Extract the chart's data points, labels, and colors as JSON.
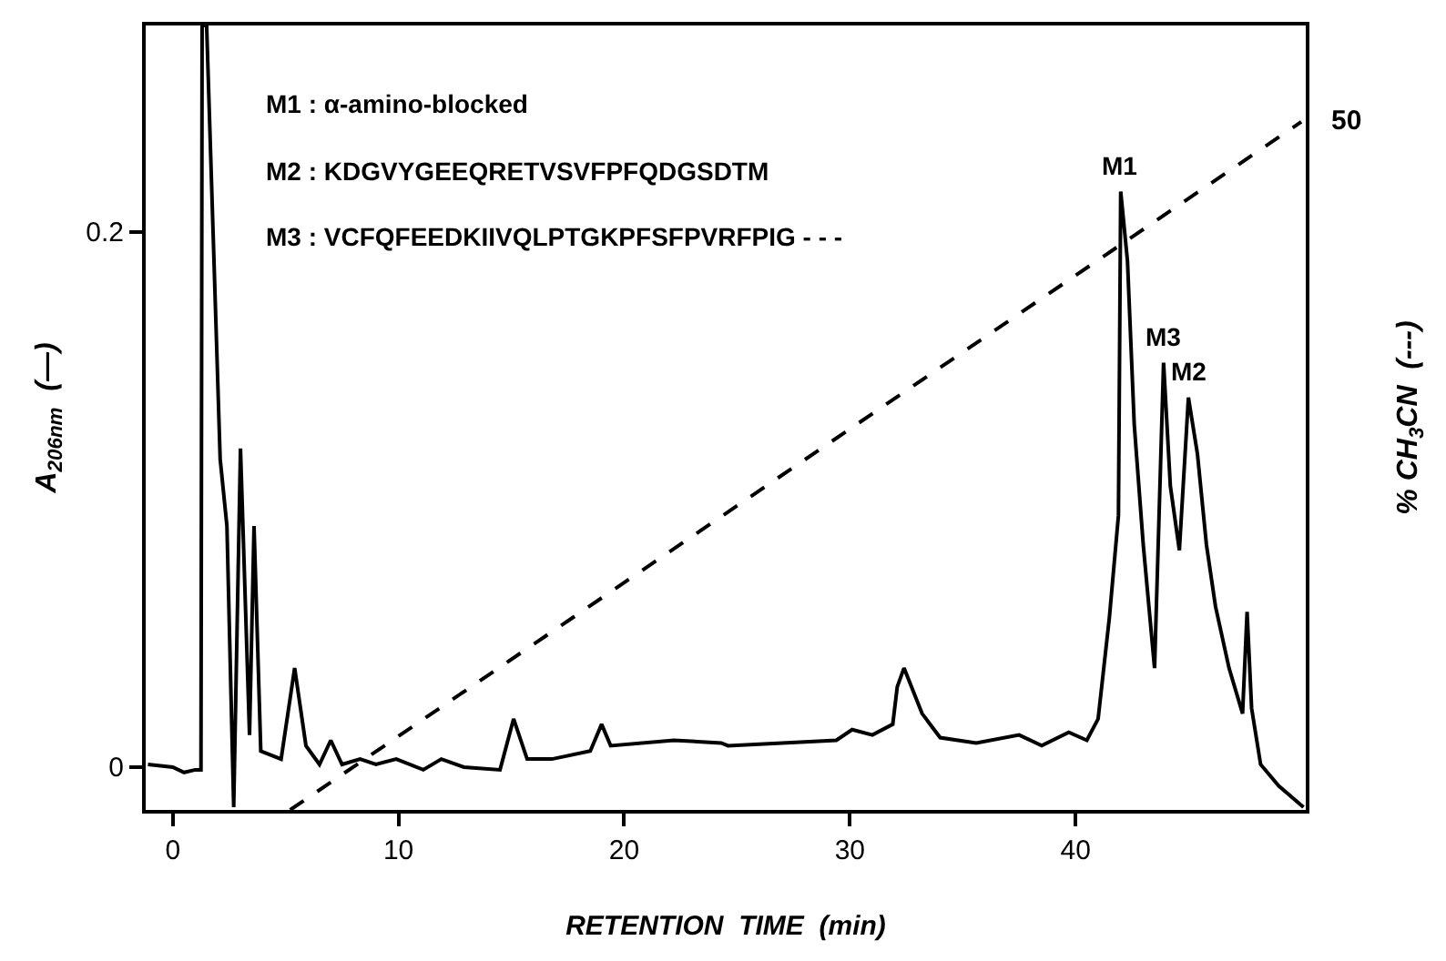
{
  "chart_data": {
    "type": "line",
    "xlabel": "RETENTION  TIME  (min)",
    "ylabel": "A$_{206nm}$  (—)",
    "y2label": "% CH$_{3}$CN  (---)",
    "xlim": [
      -1.2,
      50.2
    ],
    "xticks": [
      0,
      10,
      20,
      30,
      40
    ],
    "ylim": [
      -0.016,
      0.277
    ],
    "yticks": [
      0,
      0.2
    ],
    "y2lim": [
      0,
      57
    ],
    "legend": false,
    "marker": "none",
    "series": [
      {
        "color": "#000000",
        "line_style": "solid",
        "axis": "y",
        "x": [
          -1.1,
          0,
          0.5,
          1.0,
          1.25,
          1.3,
          1.5,
          2.1,
          2.4,
          2.7,
          3.0,
          3.4,
          3.6,
          3.9,
          4.8,
          5.4,
          5.9,
          6.5,
          7.0,
          7.5,
          8.3,
          9.0,
          9.9,
          11.1,
          11.9,
          12.9,
          14.5,
          15.1,
          15.7,
          16.8,
          18.5,
          19.0,
          19.4,
          22.2,
          24.3,
          24.6,
          29.4,
          30.1,
          31.0,
          31.9,
          32.1,
          32.4,
          33.2,
          34.0,
          35.6,
          37.5,
          38.5,
          39.7,
          40.5,
          41.0,
          41.5,
          41.9,
          42.0,
          42.3,
          42.6,
          43.0,
          43.5,
          43.9,
          44.2,
          44.6,
          45.0,
          45.4,
          45.8,
          46.2,
          46.8,
          47.4,
          47.6,
          47.8,
          48.2,
          49.0,
          50.1
        ],
        "values": [
          0.001,
          0.0,
          -0.002,
          -0.001,
          -0.001,
          0.277,
          0.277,
          0.115,
          0.09,
          -0.015,
          0.119,
          0.012,
          0.09,
          0.006,
          0.003,
          0.037,
          0.008,
          0.001,
          0.01,
          0.001,
          0.003,
          0.001,
          0.003,
          -0.001,
          0.003,
          0.0,
          -0.001,
          0.018,
          0.003,
          0.003,
          0.006,
          0.016,
          0.008,
          0.01,
          0.009,
          0.008,
          0.01,
          0.014,
          0.012,
          0.016,
          0.03,
          0.037,
          0.02,
          0.011,
          0.009,
          0.012,
          0.008,
          0.013,
          0.01,
          0.018,
          0.056,
          0.094,
          0.215,
          0.189,
          0.128,
          0.083,
          0.037,
          0.151,
          0.105,
          0.081,
          0.138,
          0.117,
          0.083,
          0.06,
          0.037,
          0.02,
          0.058,
          0.022,
          0.001,
          -0.007,
          -0.015
        ]
      },
      {
        "color": "#000000",
        "line_style": "dashed",
        "axis": "y2",
        "x": [
          5.2,
          50.0
        ],
        "values": [
          0,
          50
        ],
        "value_labels": [
          null,
          "50"
        ]
      }
    ],
    "annotations": [
      {
        "text": "M1",
        "x": 42.0,
        "y": 0.215
      },
      {
        "text": "M3",
        "x": 43.9,
        "y": 0.151
      },
      {
        "text": "M2",
        "x": 45.0,
        "y": 0.138
      },
      "M1 : α-amino-blocked",
      "M2 : KDGVYGEEQRETVSVFPFQDGSDTM",
      "M3 : VCFQFEEDKIIVQLPTGKPFSFPVRFPIG - - -"
    ]
  }
}
